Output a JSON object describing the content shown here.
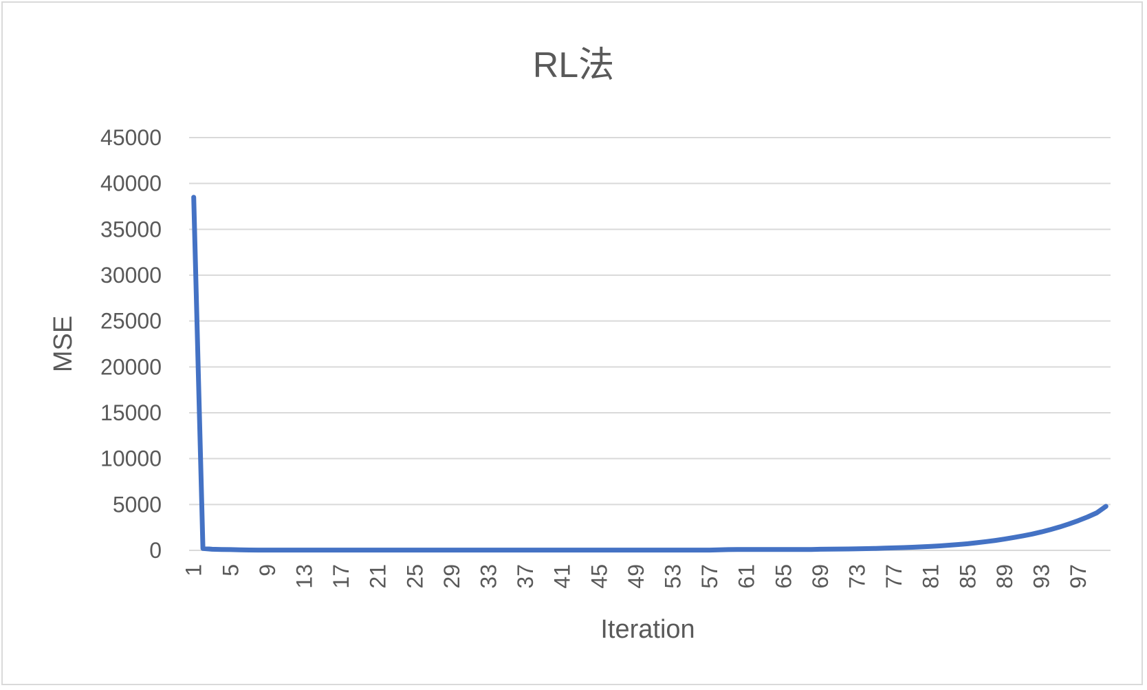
{
  "chart_data": {
    "type": "line",
    "title": "RL法",
    "xlabel": "Iteration",
    "ylabel": "MSE",
    "ylim": [
      0,
      45000
    ],
    "yticks": [
      0,
      5000,
      10000,
      15000,
      20000,
      25000,
      30000,
      35000,
      40000,
      45000
    ],
    "xtick_labels": [
      "1",
      "5",
      "9",
      "13",
      "17",
      "21",
      "25",
      "29",
      "33",
      "37",
      "41",
      "45",
      "49",
      "53",
      "57",
      "61",
      "65",
      "69",
      "73",
      "77",
      "81",
      "85",
      "89",
      "93",
      "97"
    ],
    "grid": true,
    "legend": "none",
    "colors": {
      "series": "#4472c4",
      "grid": "#d9d9d9",
      "text": "#595959"
    },
    "x": [
      1,
      2,
      3,
      4,
      5,
      6,
      7,
      8,
      9,
      10,
      11,
      12,
      13,
      14,
      15,
      16,
      17,
      18,
      19,
      20,
      21,
      22,
      23,
      24,
      25,
      26,
      27,
      28,
      29,
      30,
      31,
      32,
      33,
      34,
      35,
      36,
      37,
      38,
      39,
      40,
      41,
      42,
      43,
      44,
      45,
      46,
      47,
      48,
      49,
      50,
      51,
      52,
      53,
      54,
      55,
      56,
      57,
      58,
      59,
      60,
      61,
      62,
      63,
      64,
      65,
      66,
      67,
      68,
      69,
      70,
      71,
      72,
      73,
      74,
      75,
      76,
      77,
      78,
      79,
      80,
      81,
      82,
      83,
      84,
      85,
      86,
      87,
      88,
      89,
      90,
      91,
      92,
      93,
      94,
      95,
      96,
      97,
      98,
      99,
      100
    ],
    "series": [
      {
        "values": [
          38500,
          200,
          120,
          100,
          80,
          60,
          40,
          30,
          30,
          30,
          30,
          30,
          30,
          30,
          30,
          30,
          30,
          30,
          30,
          30,
          30,
          30,
          30,
          30,
          30,
          30,
          30,
          30,
          30,
          30,
          30,
          30,
          30,
          30,
          30,
          30,
          30,
          30,
          30,
          30,
          30,
          30,
          30,
          30,
          30,
          30,
          30,
          30,
          30,
          30,
          30,
          30,
          30,
          30,
          30,
          30,
          30,
          60,
          80,
          90,
          90,
          90,
          90,
          90,
          90,
          90,
          90,
          100,
          120,
          130,
          140,
          150,
          170,
          190,
          210,
          240,
          270,
          300,
          340,
          380,
          430,
          490,
          560,
          640,
          720,
          830,
          950,
          1080,
          1230,
          1400,
          1580,
          1780,
          2010,
          2270,
          2560,
          2880,
          3240,
          3640,
          4090,
          4800
        ]
      }
    ]
  }
}
